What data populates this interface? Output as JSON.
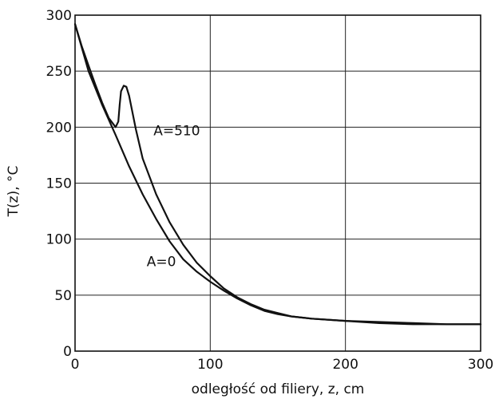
{
  "chart_data": {
    "type": "line",
    "title": "",
    "xlabel": "odległość od filiery, z, cm",
    "ylabel": "T(z), °C",
    "xlim": [
      0,
      300
    ],
    "ylim": [
      0,
      300
    ],
    "xticks": [
      0,
      100,
      200,
      300
    ],
    "yticks": [
      0,
      50,
      100,
      150,
      200,
      250,
      300
    ],
    "grid": true,
    "series": [
      {
        "name": "A=510",
        "x": [
          0,
          5,
          10,
          15,
          20,
          25,
          30,
          32,
          33,
          34,
          36,
          38,
          40,
          45,
          50,
          60,
          70,
          80,
          90,
          100,
          110,
          120,
          130,
          140,
          150,
          160,
          175,
          200,
          225,
          250,
          275,
          300
        ],
        "y": [
          292,
          272,
          255,
          238,
          222,
          208,
          200,
          205,
          220,
          232,
          237,
          236,
          228,
          198,
          172,
          140,
          115,
          95,
          79,
          67,
          56,
          48,
          42,
          37,
          34,
          31,
          29,
          27,
          25,
          24,
          24,
          24
        ]
      },
      {
        "name": "A=0",
        "x": [
          0,
          10,
          20,
          30,
          40,
          50,
          60,
          70,
          80,
          90,
          100,
          110,
          120,
          130,
          140,
          150,
          160,
          175,
          200,
          225,
          250,
          275,
          300
        ],
        "y": [
          292,
          250,
          220,
          193,
          165,
          140,
          118,
          98,
          82,
          71,
          62,
          54,
          47,
          41,
          36,
          33,
          31,
          29,
          27,
          26,
          25,
          24,
          24
        ]
      }
    ],
    "annotations": [
      {
        "text": "A=510",
        "x": 58,
        "y": 197
      },
      {
        "text": "A=0",
        "x": 53,
        "y": 80
      }
    ]
  }
}
